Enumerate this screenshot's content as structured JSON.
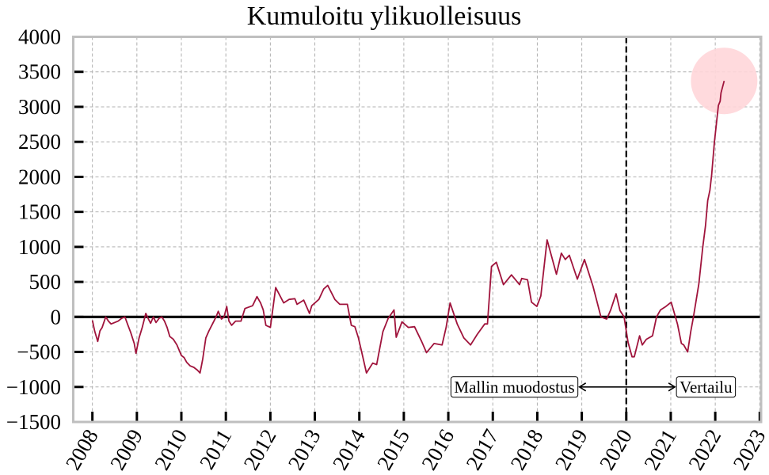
{
  "chart_data": {
    "type": "line",
    "title": "Kumuloitu ylikuolleisuus",
    "xlabel": "",
    "ylabel": "",
    "xlim": [
      2007.57,
      2023.03
    ],
    "ylim": [
      -1500,
      4000
    ],
    "x_ticks": [
      2008,
      2009,
      2010,
      2011,
      2012,
      2013,
      2014,
      2015,
      2016,
      2017,
      2018,
      2019,
      2020,
      2021,
      2022,
      2023
    ],
    "x_tick_labels": [
      "2008",
      "2009",
      "2010",
      "2011",
      "2012",
      "2013",
      "2014",
      "2015",
      "2016",
      "2017",
      "2018",
      "2019",
      "2020",
      "2021",
      "2022",
      "2023"
    ],
    "y_ticks": [
      -1500,
      -1000,
      -500,
      0,
      500,
      1000,
      1500,
      2000,
      2500,
      3000,
      3500,
      4000
    ],
    "y_tick_labels": [
      "−1500",
      "−1000",
      "−500",
      "0",
      "500",
      "1000",
      "1500",
      "2000",
      "2500",
      "3000",
      "3500",
      "4000"
    ],
    "grid": true,
    "legend": null,
    "colors": {
      "line": "#a0143c",
      "zero_line": "#000000",
      "vline": "#000000",
      "frame": "#bfbfbf",
      "grid": "#b0b0b0",
      "highlight": "#ffd6d9"
    },
    "series": [
      {
        "name": "Kumuloitu ylikuolleisuus",
        "points": [
          [
            2008.0,
            -50
          ],
          [
            2008.05,
            -200
          ],
          [
            2008.12,
            -350
          ],
          [
            2008.17,
            -200
          ],
          [
            2008.22,
            -150
          ],
          [
            2008.3,
            0
          ],
          [
            2008.36,
            -60
          ],
          [
            2008.42,
            -100
          ],
          [
            2008.5,
            -80
          ],
          [
            2008.58,
            -60
          ],
          [
            2008.66,
            -20
          ],
          [
            2008.73,
            0
          ],
          [
            2008.8,
            -120
          ],
          [
            2008.86,
            -220
          ],
          [
            2008.94,
            -380
          ],
          [
            2008.98,
            -520
          ],
          [
            2009.05,
            -300
          ],
          [
            2009.12,
            -150
          ],
          [
            2009.2,
            50
          ],
          [
            2009.26,
            -30
          ],
          [
            2009.31,
            -90
          ],
          [
            2009.37,
            0
          ],
          [
            2009.43,
            -80
          ],
          [
            2009.5,
            -20
          ],
          [
            2009.56,
            0
          ],
          [
            2009.62,
            -60
          ],
          [
            2009.68,
            -150
          ],
          [
            2009.74,
            -280
          ],
          [
            2009.82,
            -320
          ],
          [
            2009.9,
            -400
          ],
          [
            2010.0,
            -550
          ],
          [
            2010.06,
            -580
          ],
          [
            2010.12,
            -650
          ],
          [
            2010.2,
            -700
          ],
          [
            2010.28,
            -720
          ],
          [
            2010.36,
            -760
          ],
          [
            2010.42,
            -800
          ],
          [
            2010.48,
            -600
          ],
          [
            2010.55,
            -300
          ],
          [
            2010.62,
            -200
          ],
          [
            2010.7,
            -100
          ],
          [
            2010.78,
            0
          ],
          [
            2010.83,
            80
          ],
          [
            2010.9,
            -30
          ],
          [
            2010.96,
            0
          ],
          [
            2011.02,
            150
          ],
          [
            2011.07,
            -60
          ],
          [
            2011.13,
            -120
          ],
          [
            2011.22,
            -60
          ],
          [
            2011.34,
            -60
          ],
          [
            2011.43,
            120
          ],
          [
            2011.6,
            160
          ],
          [
            2011.7,
            290
          ],
          [
            2011.78,
            200
          ],
          [
            2011.84,
            100
          ],
          [
            2011.9,
            -120
          ],
          [
            2012.0,
            -150
          ],
          [
            2012.12,
            420
          ],
          [
            2012.3,
            200
          ],
          [
            2012.42,
            250
          ],
          [
            2012.55,
            260
          ],
          [
            2012.6,
            180
          ],
          [
            2012.75,
            240
          ],
          [
            2012.88,
            50
          ],
          [
            2012.93,
            160
          ],
          [
            2013.09,
            250
          ],
          [
            2013.2,
            400
          ],
          [
            2013.29,
            450
          ],
          [
            2013.45,
            250
          ],
          [
            2013.56,
            180
          ],
          [
            2013.73,
            180
          ],
          [
            2013.82,
            -120
          ],
          [
            2013.9,
            -140
          ],
          [
            2013.98,
            -300
          ],
          [
            2014.07,
            -550
          ],
          [
            2014.16,
            -800
          ],
          [
            2014.3,
            -660
          ],
          [
            2014.39,
            -680
          ],
          [
            2014.53,
            -210
          ],
          [
            2014.65,
            -20
          ],
          [
            2014.78,
            100
          ],
          [
            2014.83,
            -290
          ],
          [
            2014.96,
            -70
          ],
          [
            2015.1,
            -150
          ],
          [
            2015.24,
            -140
          ],
          [
            2015.4,
            -350
          ],
          [
            2015.51,
            -510
          ],
          [
            2015.68,
            -380
          ],
          [
            2015.86,
            -400
          ],
          [
            2015.95,
            -150
          ],
          [
            2016.04,
            200
          ],
          [
            2016.12,
            50
          ],
          [
            2016.2,
            -100
          ],
          [
            2016.35,
            -300
          ],
          [
            2016.5,
            -400
          ],
          [
            2016.65,
            -250
          ],
          [
            2016.82,
            -100
          ],
          [
            2016.88,
            -100
          ],
          [
            2016.97,
            720
          ],
          [
            2017.08,
            780
          ],
          [
            2017.24,
            460
          ],
          [
            2017.42,
            600
          ],
          [
            2017.6,
            460
          ],
          [
            2017.65,
            550
          ],
          [
            2017.78,
            530
          ],
          [
            2017.87,
            210
          ],
          [
            2017.99,
            150
          ],
          [
            2018.08,
            300
          ],
          [
            2018.22,
            1100
          ],
          [
            2018.43,
            610
          ],
          [
            2018.54,
            910
          ],
          [
            2018.63,
            820
          ],
          [
            2018.72,
            880
          ],
          [
            2018.9,
            540
          ],
          [
            2019.06,
            820
          ],
          [
            2019.25,
            440
          ],
          [
            2019.43,
            0
          ],
          [
            2019.56,
            -30
          ],
          [
            2019.65,
            100
          ],
          [
            2019.77,
            330
          ],
          [
            2019.86,
            90
          ],
          [
            2019.95,
            0
          ],
          [
            2020.04,
            -360
          ],
          [
            2020.13,
            -570
          ],
          [
            2020.18,
            -570
          ],
          [
            2020.3,
            -270
          ],
          [
            2020.36,
            -400
          ],
          [
            2020.45,
            -320
          ],
          [
            2020.59,
            -270
          ],
          [
            2020.68,
            0
          ],
          [
            2020.77,
            100
          ],
          [
            2020.89,
            150
          ],
          [
            2021.01,
            210
          ],
          [
            2021.06,
            100
          ],
          [
            2021.15,
            -100
          ],
          [
            2021.24,
            -380
          ],
          [
            2021.29,
            -400
          ],
          [
            2021.38,
            -500
          ],
          [
            2021.45,
            -210
          ],
          [
            2021.51,
            0
          ],
          [
            2021.63,
            470
          ],
          [
            2021.72,
            1000
          ],
          [
            2021.78,
            1300
          ],
          [
            2021.83,
            1660
          ],
          [
            2021.88,
            1810
          ],
          [
            2021.92,
            2030
          ],
          [
            2021.98,
            2490
          ],
          [
            2022.07,
            3020
          ],
          [
            2022.11,
            3080
          ],
          [
            2022.13,
            3200
          ],
          [
            2022.2,
            3370
          ]
        ]
      }
    ],
    "annotations": {
      "vline_x": 2020,
      "zero_hline": 0,
      "left_label": "Mallin muodostus",
      "right_label": "Vertailu",
      "arrow_y": -1000,
      "arrow_x_start": 2018.93,
      "arrow_x_end": 2021.11,
      "highlight_circle": {
        "x": 2022.2,
        "y": 3370,
        "radius_px": 42
      }
    }
  }
}
